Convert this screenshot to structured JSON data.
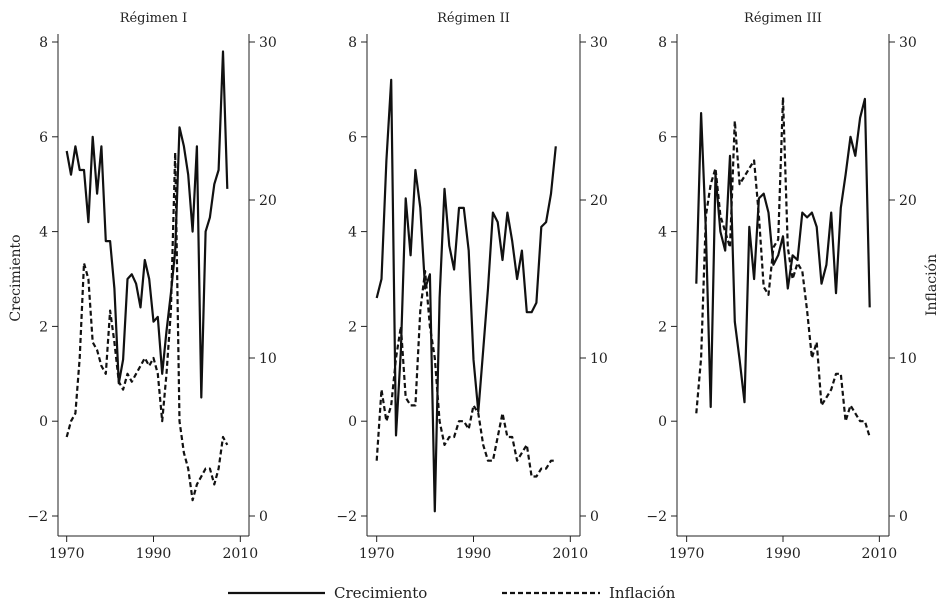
{
  "chart_data": {
    "type": "line",
    "left_axis_label": "Crecimiento",
    "right_axis_label": "Inflación",
    "left_ylim": [
      -2,
      8
    ],
    "right_ylim": [
      0,
      30
    ],
    "left_ticks": [
      -2,
      0,
      2,
      4,
      6,
      8
    ],
    "right_ticks": [
      0,
      10,
      20,
      30
    ],
    "xlim": [
      1968,
      2012
    ],
    "x_ticks": [
      1970,
      1990,
      2010
    ],
    "legend": {
      "placement": "bottom",
      "growth_label": "Crecimiento",
      "inflation_label": "Inflación"
    },
    "panels": [
      {
        "title": "Régimen I",
        "series": [
          {
            "name": "Crecimiento",
            "x": [
              1970,
              1971,
              1972,
              1973,
              1974,
              1975,
              1976,
              1977,
              1978,
              1979,
              1980,
              1981,
              1982,
              1983,
              1984,
              1985,
              1986,
              1987,
              1988,
              1989,
              1990,
              1991,
              1992,
              1993,
              1994,
              1995,
              1996,
              1997,
              1998,
              1999,
              2000,
              2001,
              2002,
              2003,
              2004,
              2005,
              2006,
              2007
            ],
            "values": [
              5.7,
              5.2,
              5.8,
              5.3,
              5.3,
              4.2,
              6.0,
              4.8,
              5.8,
              3.8,
              3.8,
              2.8,
              0.8,
              1.3,
              3.0,
              3.1,
              2.9,
              2.4,
              3.4,
              3.0,
              2.1,
              2.2,
              1.0,
              1.9,
              2.7,
              3.6,
              6.2,
              5.8,
              5.2,
              4.0,
              5.8,
              0.5,
              4.0,
              4.3,
              5.0,
              5.3,
              7.8,
              4.9
            ]
          },
          {
            "name": "Inflación",
            "x": [
              1970,
              1971,
              1972,
              1973,
              1974,
              1975,
              1976,
              1977,
              1978,
              1979,
              1980,
              1981,
              1982,
              1983,
              1984,
              1985,
              1986,
              1987,
              1988,
              1989,
              1990,
              1991,
              1992,
              1993,
              1994,
              1995,
              1996,
              1997,
              1998,
              1999,
              2000,
              2001,
              2002,
              2003,
              2004,
              2005,
              2006,
              2007
            ],
            "values": [
              5.0,
              6.0,
              6.5,
              10.0,
              16.0,
              15.0,
              11.0,
              10.5,
              9.5,
              9.0,
              13.0,
              11.0,
              8.5,
              8.0,
              9.0,
              8.5,
              9.0,
              9.5,
              10.0,
              9.5,
              10.0,
              9.0,
              6.0,
              9.0,
              13.0,
              23.0,
              6.0,
              4.0,
              3.0,
              1.0,
              2.0,
              2.5,
              3.0,
              3.0,
              2.0,
              3.0,
              5.0,
              4.5
            ]
          }
        ]
      },
      {
        "title": "Régimen II",
        "series": [
          {
            "name": "Crecimiento",
            "x": [
              1970,
              1971,
              1972,
              1973,
              1974,
              1975,
              1976,
              1977,
              1978,
              1979,
              1980,
              1981,
              1982,
              1983,
              1984,
              1985,
              1986,
              1987,
              1988,
              1989,
              1990,
              1991,
              1992,
              1993,
              1994,
              1995,
              1996,
              1997,
              1998,
              1999,
              2000,
              2001,
              2002,
              2003,
              2004,
              2005,
              2006,
              2007
            ],
            "values": [
              2.6,
              3.0,
              5.5,
              7.2,
              -0.3,
              1.5,
              4.7,
              3.5,
              5.3,
              4.5,
              2.8,
              3.1,
              -1.9,
              2.6,
              4.9,
              3.7,
              3.2,
              4.5,
              4.5,
              3.6,
              1.3,
              0.2,
              1.5,
              2.8,
              4.4,
              4.2,
              3.4,
              4.4,
              3.8,
              3.0,
              3.6,
              2.3,
              2.3,
              2.5,
              4.1,
              4.2,
              4.8,
              5.8
            ]
          },
          {
            "name": "Inflación",
            "x": [
              1970,
              1971,
              1972,
              1973,
              1974,
              1975,
              1976,
              1977,
              1978,
              1979,
              1980,
              1981,
              1982,
              1983,
              1984,
              1985,
              1986,
              1987,
              1988,
              1989,
              1990,
              1991,
              1992,
              1993,
              1994,
              1995,
              1996,
              1997,
              1998,
              1999,
              2000,
              2001,
              2002,
              2003,
              2004,
              2005,
              2006,
              2007
            ],
            "values": [
              3.5,
              8.0,
              6.0,
              7.0,
              10.0,
              12.0,
              7.5,
              7.0,
              7.0,
              13.0,
              15.5,
              12.0,
              10.0,
              6.0,
              4.5,
              5.0,
              5.0,
              6.0,
              6.0,
              5.5,
              7.0,
              6.5,
              4.5,
              3.5,
              3.5,
              5.0,
              6.5,
              5.0,
              5.0,
              3.5,
              4.0,
              4.5,
              2.5,
              2.5,
              3.0,
              3.0,
              3.5,
              3.5
            ]
          }
        ]
      },
      {
        "title": "Régimen III",
        "series": [
          {
            "name": "Crecimiento",
            "x": [
              1972,
              1973,
              1974,
              1975,
              1976,
              1977,
              1978,
              1979,
              1980,
              1981,
              1982,
              1983,
              1984,
              1985,
              1986,
              1987,
              1988,
              1989,
              1990,
              1991,
              1992,
              1993,
              1994,
              1995,
              1996,
              1997,
              1998,
              1999,
              2000,
              2001,
              2002,
              2003,
              2004,
              2005,
              2006,
              2007,
              2008
            ],
            "values": [
              2.9,
              6.5,
              4.0,
              0.3,
              5.2,
              4.0,
              3.6,
              5.6,
              2.1,
              1.3,
              0.4,
              4.1,
              3.0,
              4.7,
              4.8,
              4.4,
              3.3,
              3.5,
              3.9,
              2.8,
              3.5,
              3.4,
              4.4,
              4.3,
              4.4,
              4.1,
              2.9,
              3.3,
              4.4,
              2.7,
              4.5,
              5.2,
              6.0,
              5.6,
              6.4,
              6.8,
              2.4
            ]
          },
          {
            "name": "Inflación",
            "x": [
              1972,
              1973,
              1974,
              1975,
              1976,
              1977,
              1978,
              1979,
              1980,
              1981,
              1982,
              1983,
              1984,
              1985,
              1986,
              1987,
              1988,
              1989,
              1990,
              1991,
              1992,
              1993,
              1994,
              1995,
              1996,
              1997,
              1998,
              1999,
              2000,
              2001,
              2002,
              2003,
              2004,
              2005,
              2006,
              2007,
              2008
            ],
            "values": [
              6.5,
              10.0,
              19.0,
              21.0,
              22.0,
              19.0,
              18.0,
              17.0,
              25.0,
              21.0,
              21.5,
              22.0,
              22.5,
              19.0,
              14.5,
              14.0,
              17.0,
              17.5,
              26.5,
              17.0,
              15.0,
              16.0,
              15.5,
              13.0,
              10.0,
              11.0,
              7.0,
              7.5,
              8.0,
              9.0,
              9.0,
              6.0,
              7.0,
              6.5,
              6.0,
              6.0,
              5.0
            ]
          }
        ]
      }
    ]
  }
}
